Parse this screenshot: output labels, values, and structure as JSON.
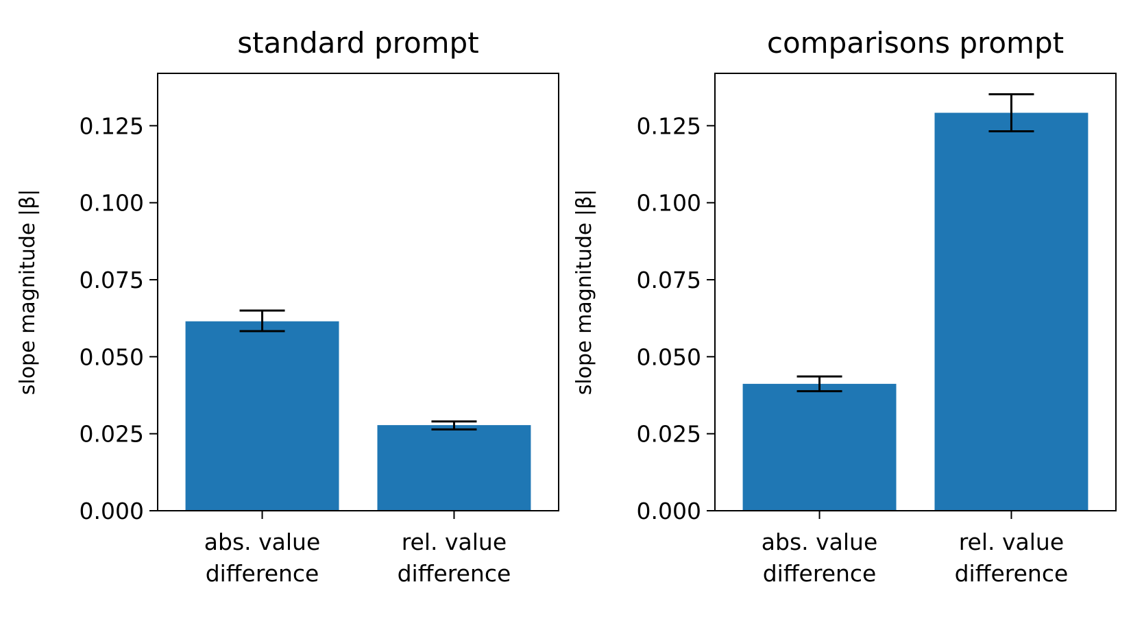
{
  "chart_data": [
    {
      "type": "bar",
      "title": "standard prompt",
      "ylabel": "slope magnitude |β|",
      "xlabel": "",
      "ylim": [
        0,
        0.142
      ],
      "yticks": [
        "0.000",
        "0.025",
        "0.050",
        "0.075",
        "0.100",
        "0.125"
      ],
      "ytick_values": [
        0,
        0.025,
        0.05,
        0.075,
        0.1,
        0.125
      ],
      "categories": [
        [
          "abs. value",
          "difference"
        ],
        [
          "rel. value",
          "difference"
        ]
      ],
      "values": [
        0.0615,
        0.0278
      ],
      "errors": [
        [
          0.0583,
          0.065
        ],
        [
          0.0264,
          0.029
        ]
      ],
      "bar_color": "#1f77b4",
      "grid": false
    },
    {
      "type": "bar",
      "title": "comparisons prompt",
      "ylabel": "slope magnitude |β|",
      "xlabel": "",
      "ylim": [
        0,
        0.142
      ],
      "yticks": [
        "0.000",
        "0.025",
        "0.050",
        "0.075",
        "0.100",
        "0.125"
      ],
      "ytick_values": [
        0,
        0.025,
        0.05,
        0.075,
        0.1,
        0.125
      ],
      "categories": [
        [
          "abs. value",
          "difference"
        ],
        [
          "rel. value",
          "difference"
        ]
      ],
      "values": [
        0.0412,
        0.1292
      ],
      "errors": [
        [
          0.0388,
          0.0436
        ],
        [
          0.1232,
          0.1352
        ]
      ],
      "bar_color": "#1f77b4",
      "grid": false
    }
  ]
}
